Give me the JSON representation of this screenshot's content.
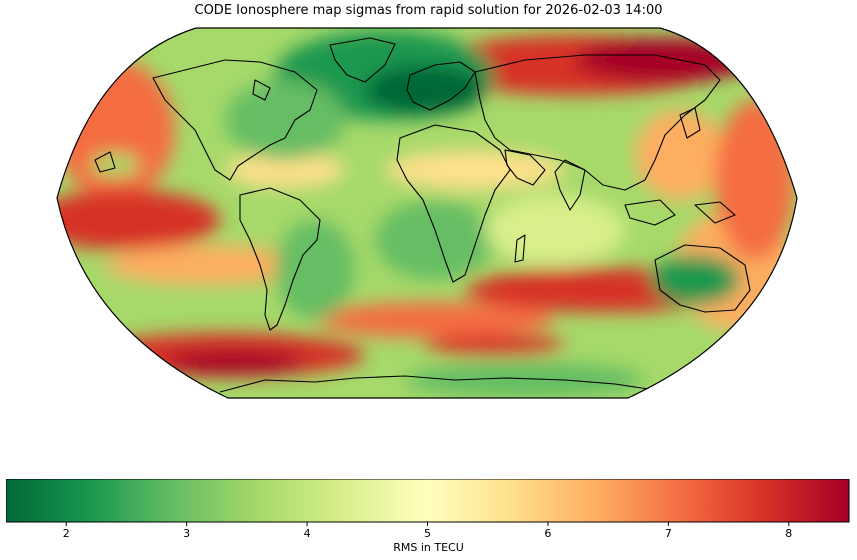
{
  "title": "CODE Ionosphere map sigmas from rapid solution for 2026-02-03 14:00",
  "colorbar": {
    "label": "RMS in TECU",
    "ticks": [
      "2",
      "3",
      "4",
      "5",
      "6",
      "7",
      "8"
    ],
    "range": [
      1.5,
      8.5
    ],
    "colormap": "RdYlGn_r",
    "colors": [
      "#006837",
      "#1a9850",
      "#66bd63",
      "#a6d96a",
      "#d9ef8b",
      "#ffffbf",
      "#fee08b",
      "#fdae61",
      "#f46d43",
      "#d73027",
      "#a50026"
    ]
  },
  "map": {
    "projection": "Robinson",
    "field": "RMS in TECU",
    "background": "#a6d96a"
  }
}
